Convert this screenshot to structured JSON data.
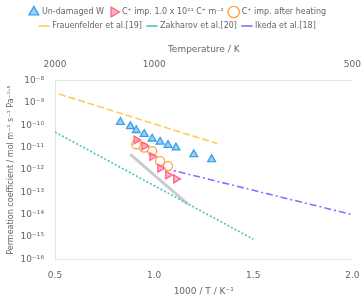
{
  "chart_data": {
    "type": "scatter",
    "xlabel": "1000 / T / K⁻¹",
    "ylabel": "Permeation coefficient / mol m⁻¹ s⁻¹ Pa⁻⁰·⁵",
    "x2label": "Temperature / K",
    "log": "y",
    "grid": false,
    "legend": "top",
    "xlim": [
      0.5,
      2.0
    ],
    "xticks": [
      0.5,
      {
        "value": 1.0,
        "label": "1.0"
      },
      1.5,
      {
        "value": 2.0,
        "label": "2.0"
      }
    ],
    "x2lim": [
      2000,
      500
    ],
    "x2ticks": [
      2000,
      1000,
      500
    ],
    "ylim": [
      1e-16,
      1e-08
    ],
    "yticks": [
      {
        "value": 1e-16,
        "label": "10⁻¹⁶"
      },
      {
        "value": 1e-15,
        "label": "10⁻¹⁵"
      },
      {
        "value": 1e-14,
        "label": "10⁻¹⁴"
      },
      {
        "value": 1e-13,
        "label": "10⁻¹³"
      },
      {
        "value": 1e-12,
        "label": "10⁻¹²"
      },
      {
        "value": 1e-11,
        "label": "10⁻¹¹"
      },
      {
        "value": 1e-10,
        "label": "10⁻¹⁰"
      },
      {
        "value": 1e-09,
        "label": "10⁻⁹"
      },
      {
        "value": 1e-08,
        "label": "10⁻⁸"
      }
    ],
    "series": [
      {
        "name": "Un-damaged W",
        "type": "scatter",
        "marker": "triangle-up",
        "x": [
          0.83,
          0.88,
          0.91,
          0.95,
          0.99,
          1.03,
          1.07,
          1.11,
          1.2,
          1.29
        ],
        "values": [
          1.4e-10,
          9e-11,
          6e-11,
          4e-11,
          2.5e-11,
          1.8e-11,
          1.3e-11,
          1e-11,
          5e-12,
          3e-12
        ]
      },
      {
        "name": "C⁺ imp. 1.0 x 10²¹ C⁺ m⁻²",
        "type": "scatter",
        "marker": "triangle-right",
        "x": [
          0.91,
          0.95,
          0.99,
          1.03,
          1.07,
          1.11
        ],
        "values": [
          2.2e-11,
          1.2e-11,
          4e-12,
          1.2e-12,
          6e-13,
          4e-13
        ]
      },
      {
        "name": "C⁺ imp. after heating",
        "type": "scatter",
        "marker": "circle-open",
        "x": [
          0.91,
          0.95,
          0.99,
          1.03,
          1.07
        ],
        "values": [
          1.4e-11,
          1e-11,
          7e-12,
          2.5e-12,
          1.5e-12
        ]
      },
      {
        "name": "Frauenfelder et al.[19]",
        "type": "line",
        "line_style": "dashed",
        "x": [
          0.52,
          1.32
        ],
        "values": [
          2.5e-09,
          1.5e-11
        ]
      },
      {
        "name": "Zakharov et al.[20]",
        "type": "line",
        "line_style": "dotted",
        "x": [
          0.5,
          1.5
        ],
        "values": [
          5e-11,
          8e-16
        ]
      },
      {
        "name": "Ikeda et al.[18]",
        "type": "line",
        "line_style": "dashdot",
        "x": [
          1.05,
          2.0
        ],
        "values": [
          1.2e-12,
          1e-14
        ]
      },
      {
        "type": "line",
        "line_style": "solid",
        "x": [
          0.88,
          1.17
        ],
        "values": [
          5e-12,
          3e-14
        ]
      }
    ]
  }
}
